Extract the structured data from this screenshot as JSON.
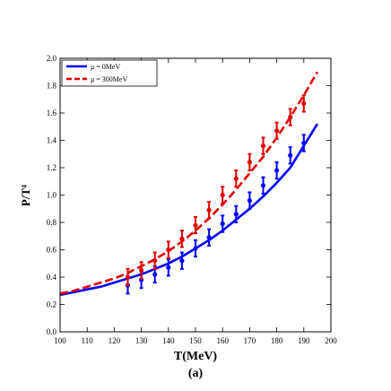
{
  "chart_data": {
    "type": "line",
    "xlabel": "T(MeV)",
    "ylabel": "P/T⁴",
    "caption": "(a)",
    "xlim": [
      100,
      200
    ],
    "ylim": [
      0.0,
      2.0
    ],
    "xticks": [
      100,
      110,
      120,
      130,
      140,
      150,
      160,
      170,
      180,
      190,
      200
    ],
    "yticks": [
      0.0,
      0.2,
      0.4,
      0.6,
      0.8,
      1.0,
      1.2,
      1.4,
      1.6,
      1.8,
      2.0
    ],
    "xtick_labels": [
      "100",
      "110",
      "120",
      "130",
      "140",
      "150",
      "160",
      "170",
      "180",
      "190",
      "200"
    ],
    "ytick_labels": [
      "0.0",
      "0.2",
      "0.4",
      "0.6",
      "0.8",
      "1.0",
      "1.2",
      "1.4",
      "1.6",
      "1.8",
      "2.0"
    ],
    "grid": false,
    "legend_position": "top-left",
    "series": [
      {
        "name": "μ = 0MeV",
        "color": "#0000ff",
        "style": "solid",
        "curve": {
          "x": [
            100,
            105,
            110,
            115,
            120,
            125,
            130,
            135,
            140,
            145,
            150,
            155,
            160,
            165,
            170,
            175,
            180,
            185,
            190,
            195
          ],
          "y": [
            0.27,
            0.29,
            0.31,
            0.33,
            0.36,
            0.39,
            0.42,
            0.46,
            0.5,
            0.55,
            0.61,
            0.67,
            0.74,
            0.82,
            0.9,
            0.99,
            1.09,
            1.2,
            1.36,
            1.52
          ]
        },
        "points": {
          "x": [
            125,
            130,
            135,
            140,
            145,
            150,
            155,
            160,
            165,
            170,
            175,
            180,
            185,
            190
          ],
          "y": [
            0.34,
            0.38,
            0.42,
            0.47,
            0.52,
            0.61,
            0.69,
            0.79,
            0.86,
            0.96,
            1.07,
            1.18,
            1.29,
            1.38
          ],
          "err": [
            0.06,
            0.06,
            0.06,
            0.06,
            0.06,
            0.06,
            0.06,
            0.06,
            0.06,
            0.06,
            0.06,
            0.06,
            0.06,
            0.06
          ]
        }
      },
      {
        "name": "μ = 300MeV",
        "color": "#e00000",
        "style": "dashed",
        "curve": {
          "x": [
            100,
            105,
            110,
            115,
            120,
            125,
            130,
            135,
            140,
            145,
            150,
            155,
            160,
            165,
            170,
            175,
            180,
            185,
            190,
            195
          ],
          "y": [
            0.28,
            0.3,
            0.33,
            0.36,
            0.39,
            0.43,
            0.48,
            0.53,
            0.59,
            0.66,
            0.74,
            0.83,
            0.93,
            1.04,
            1.16,
            1.28,
            1.42,
            1.57,
            1.73,
            1.9
          ]
        },
        "points": {
          "x": [
            125,
            130,
            135,
            140,
            145,
            150,
            155,
            160,
            165,
            170,
            175,
            180,
            185,
            190
          ],
          "y": [
            0.4,
            0.45,
            0.52,
            0.6,
            0.68,
            0.78,
            0.89,
            1.0,
            1.12,
            1.24,
            1.36,
            1.47,
            1.57,
            1.67
          ],
          "err": [
            0.06,
            0.06,
            0.06,
            0.06,
            0.06,
            0.06,
            0.06,
            0.06,
            0.06,
            0.06,
            0.06,
            0.06,
            0.06,
            0.06
          ]
        }
      }
    ]
  }
}
